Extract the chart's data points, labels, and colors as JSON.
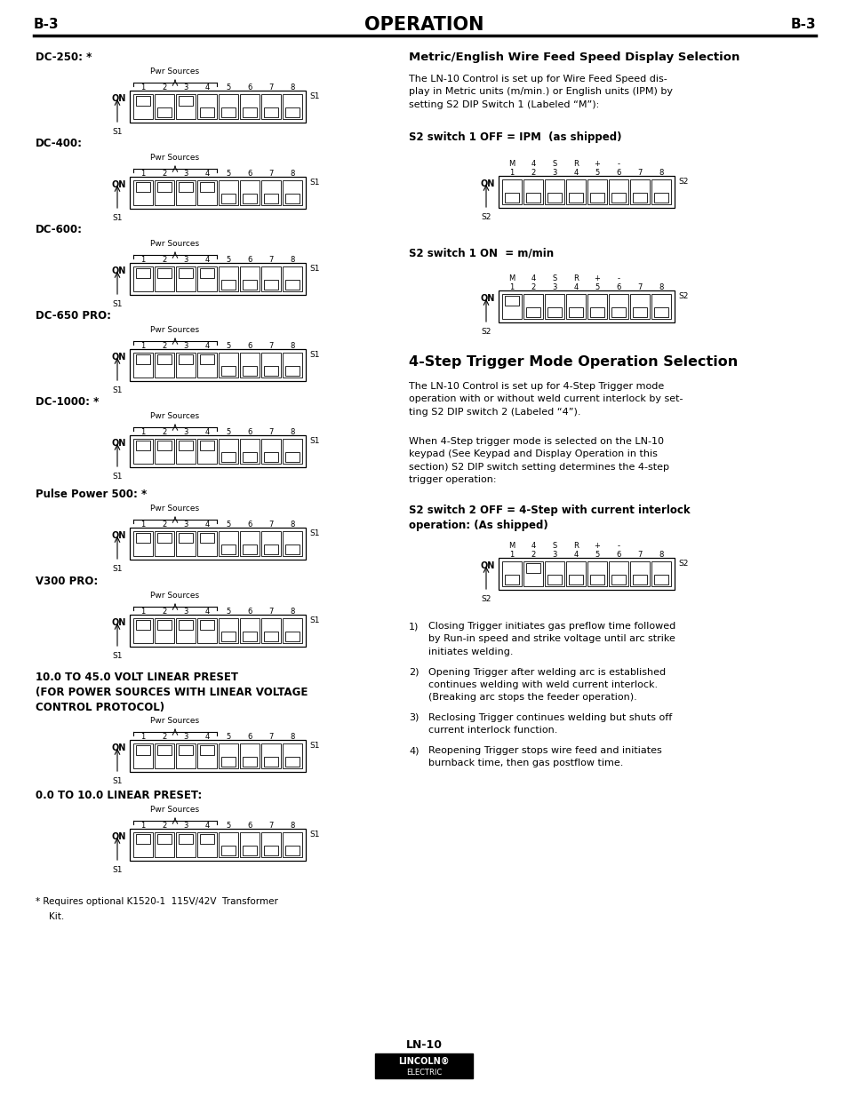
{
  "bg_color": "#ffffff",
  "header_left": "B-3",
  "header_center": "OPERATION",
  "header_right": "B-3",
  "left_sections": [
    {
      "label": "DC-250: *",
      "on_switches": [
        1,
        3
      ],
      "pwr_range": [
        1,
        4
      ]
    },
    {
      "label": "DC-400:",
      "on_switches": [
        1,
        2,
        3,
        4
      ],
      "pwr_range": [
        1,
        4
      ]
    },
    {
      "label": "DC-600:",
      "on_switches": [
        1,
        2,
        3,
        4
      ],
      "pwr_range": [
        1,
        4
      ]
    },
    {
      "label": "DC-650 PRO:",
      "on_switches": [
        1,
        2,
        3,
        4
      ],
      "pwr_range": [
        1,
        4
      ]
    },
    {
      "label": "DC-1000: *",
      "on_switches": [
        1,
        2,
        3,
        4
      ],
      "pwr_range": [
        1,
        4
      ]
    },
    {
      "label": "Pulse Power 500: *",
      "on_switches": [
        1,
        2,
        3,
        4
      ],
      "pwr_range": [
        1,
        4
      ]
    },
    {
      "label": "V300 PRO:",
      "on_switches": [
        1,
        2,
        3,
        4
      ],
      "pwr_range": [
        1,
        4
      ]
    },
    {
      "label": "10.0 TO 45.0 VOLT LINEAR PRESET\n(FOR POWER SOURCES WITH LINEAR VOLTAGE\nCONTROL PROTOCOL)",
      "on_switches": [
        1,
        2,
        3,
        4
      ],
      "pwr_range": [
        1,
        4
      ]
    },
    {
      "label": "0.0 TO 10.0 LINEAR PRESET:",
      "on_switches": [
        1,
        2,
        3,
        4
      ],
      "pwr_range": [
        1,
        4
      ]
    }
  ],
  "s2_col_labels": [
    "M",
    "4",
    "S",
    "R",
    "+",
    "-",
    "",
    ""
  ],
  "right_sections": [
    {
      "title": "Metric/English Wire Feed Speed Display Selection",
      "body": "The LN-10 Control is set up for Wire Feed Speed dis-\nplay in Metric units (m/min.) or English units (IPM) by\nsetting S2 DIP Switch 1 (Labeled “M”):"
    }
  ],
  "footnote": "* Requires optional K1520-1  115V/42V  Transformer\n  Kit.",
  "footer_label": "LN-10"
}
